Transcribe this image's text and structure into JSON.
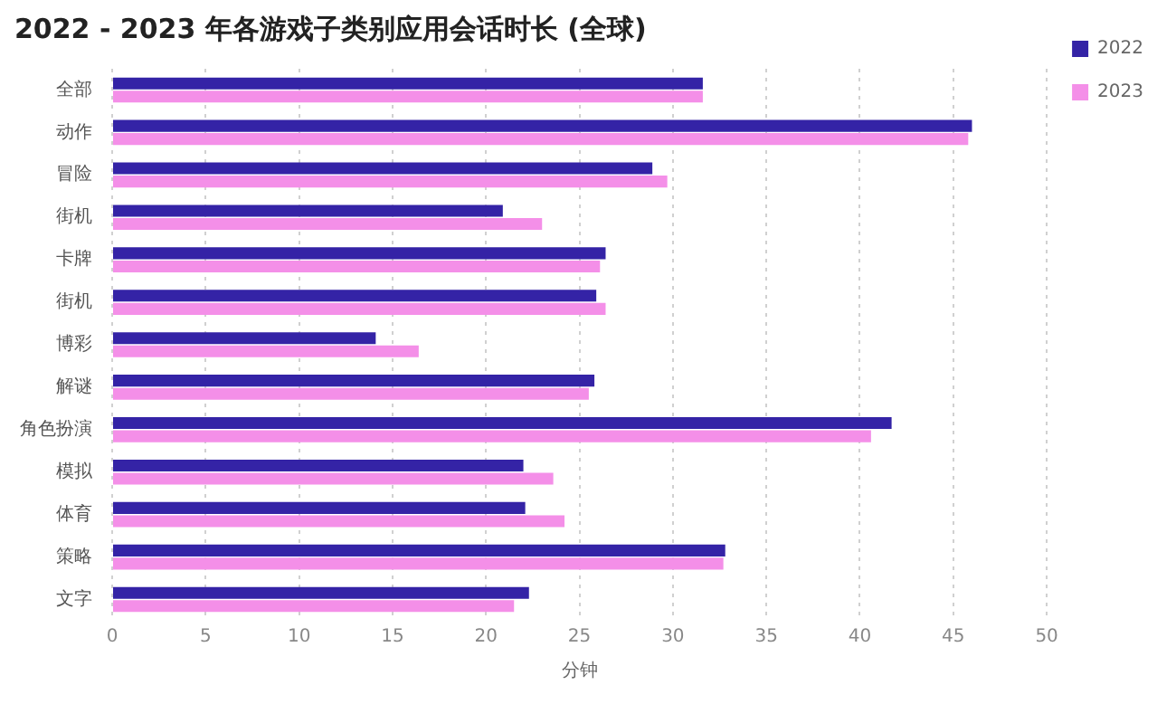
{
  "chart_data": {
    "type": "bar",
    "orientation": "horizontal",
    "title": "2022 - 2023 年各游戏子类别应用会话时长 (全球)",
    "xlabel": "分钟",
    "categories": [
      "全部",
      "动作",
      "冒险",
      "街机",
      "卡牌",
      "街机",
      "博彩",
      "解谜",
      "角色扮演",
      "模拟",
      "体育",
      "策略",
      "文字"
    ],
    "series": [
      {
        "name": "2022",
        "color": "#3423a6",
        "values": [
          31.6,
          46.0,
          28.9,
          20.9,
          26.4,
          25.9,
          14.1,
          25.8,
          41.7,
          22.0,
          22.1,
          32.8,
          22.3
        ]
      },
      {
        "name": "2023",
        "color": "#f48fe8",
        "values": [
          31.6,
          45.8,
          29.7,
          23.0,
          26.1,
          26.4,
          16.4,
          25.5,
          40.6,
          23.6,
          24.2,
          32.7,
          21.5
        ]
      }
    ],
    "xlim": [
      0,
      50
    ],
    "xticks": [
      0,
      5,
      10,
      15,
      20,
      25,
      30,
      35,
      40,
      45,
      50
    ],
    "grid": "x",
    "legend": "top right"
  }
}
